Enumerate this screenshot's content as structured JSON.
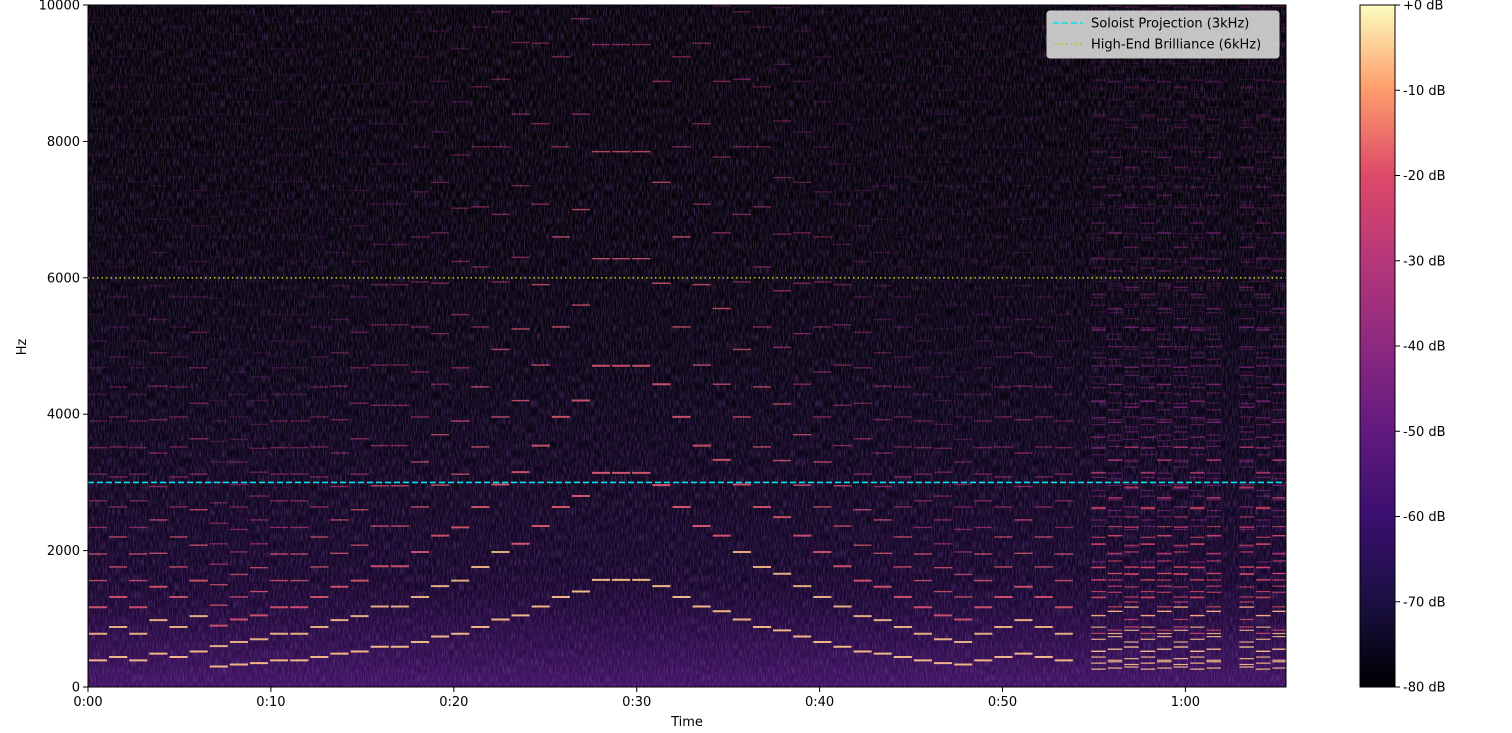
{
  "chart_data": {
    "type": "heatmap",
    "title": "",
    "xlabel": "Time",
    "ylabel": "Hz",
    "x_range": [
      0,
      65.5
    ],
    "ylim": [
      0,
      10000
    ],
    "x_ticks": [
      {
        "value": 0,
        "label": "0:00"
      },
      {
        "value": 10,
        "label": "0:10"
      },
      {
        "value": 20,
        "label": "0:20"
      },
      {
        "value": 30,
        "label": "0:30"
      },
      {
        "value": 40,
        "label": "0:40"
      },
      {
        "value": 50,
        "label": "0:50"
      },
      {
        "value": 60,
        "label": "1:00"
      }
    ],
    "y_ticks": [
      0,
      2000,
      4000,
      6000,
      8000,
      10000
    ],
    "colormap": "magma",
    "colorbar": {
      "min": -80,
      "max": 0,
      "ticks": [
        {
          "value": 0,
          "label": "+0 dB"
        },
        {
          "value": -10,
          "label": "-10 dB"
        },
        {
          "value": -20,
          "label": "-20 dB"
        },
        {
          "value": -30,
          "label": "-30 dB"
        },
        {
          "value": -40,
          "label": "-40 dB"
        },
        {
          "value": -50,
          "label": "-50 dB"
        },
        {
          "value": -60,
          "label": "-60 dB"
        },
        {
          "value": -70,
          "label": "-70 dB"
        },
        {
          "value": -80,
          "label": "-80 dB"
        }
      ]
    },
    "reference_lines": [
      {
        "name": "Soloist Projection (3kHz)",
        "y": 3000,
        "color": "#00e5ee",
        "style": "dashed"
      },
      {
        "name": "High-End Brilliance (6kHz)",
        "y": 6000,
        "color": "#bcbd22",
        "style": "dotted"
      }
    ],
    "legend_position": "top-right",
    "melody_f0": [
      {
        "t": 0.0,
        "f": 390
      },
      {
        "t": 1.1,
        "f": 440
      },
      {
        "t": 2.2,
        "f": 390
      },
      {
        "t": 3.3,
        "f": 490
      },
      {
        "t": 4.4,
        "f": 440
      },
      {
        "t": 5.5,
        "f": 520
      },
      {
        "t": 6.6,
        "f": 300
      },
      {
        "t": 7.7,
        "f": 330
      },
      {
        "t": 8.8,
        "f": 350
      },
      {
        "t": 9.9,
        "f": 390
      },
      {
        "t": 11.0,
        "f": 390
      },
      {
        "t": 12.1,
        "f": 440
      },
      {
        "t": 13.2,
        "f": 490
      },
      {
        "t": 14.3,
        "f": 520
      },
      {
        "t": 15.4,
        "f": 590
      },
      {
        "t": 16.5,
        "f": 590
      },
      {
        "t": 17.6,
        "f": 660
      },
      {
        "t": 18.7,
        "f": 740
      },
      {
        "t": 19.8,
        "f": 780
      },
      {
        "t": 20.9,
        "f": 880
      },
      {
        "t": 22.0,
        "f": 990
      },
      {
        "t": 23.1,
        "f": 1050
      },
      {
        "t": 24.2,
        "f": 1180
      },
      {
        "t": 25.3,
        "f": 1320
      },
      {
        "t": 26.4,
        "f": 1400
      },
      {
        "t": 27.5,
        "f": 1570
      },
      {
        "t": 28.6,
        "f": 1570
      },
      {
        "t": 29.7,
        "f": 1570
      },
      {
        "t": 30.8,
        "f": 1480
      },
      {
        "t": 31.9,
        "f": 1320
      },
      {
        "t": 33.0,
        "f": 1180
      },
      {
        "t": 34.1,
        "f": 1110
      },
      {
        "t": 35.2,
        "f": 990
      },
      {
        "t": 36.3,
        "f": 880
      },
      {
        "t": 37.4,
        "f": 830
      },
      {
        "t": 38.5,
        "f": 740
      },
      {
        "t": 39.6,
        "f": 660
      },
      {
        "t": 40.7,
        "f": 590
      },
      {
        "t": 41.8,
        "f": 520
      },
      {
        "t": 42.9,
        "f": 490
      },
      {
        "t": 44.0,
        "f": 440
      },
      {
        "t": 45.1,
        "f": 390
      },
      {
        "t": 46.2,
        "f": 350
      },
      {
        "t": 47.3,
        "f": 330
      },
      {
        "t": 48.4,
        "f": 390
      },
      {
        "t": 49.5,
        "f": 440
      },
      {
        "t": 50.6,
        "f": 490
      },
      {
        "t": 51.7,
        "f": 440
      },
      {
        "t": 52.8,
        "f": 390
      }
    ]
  }
}
